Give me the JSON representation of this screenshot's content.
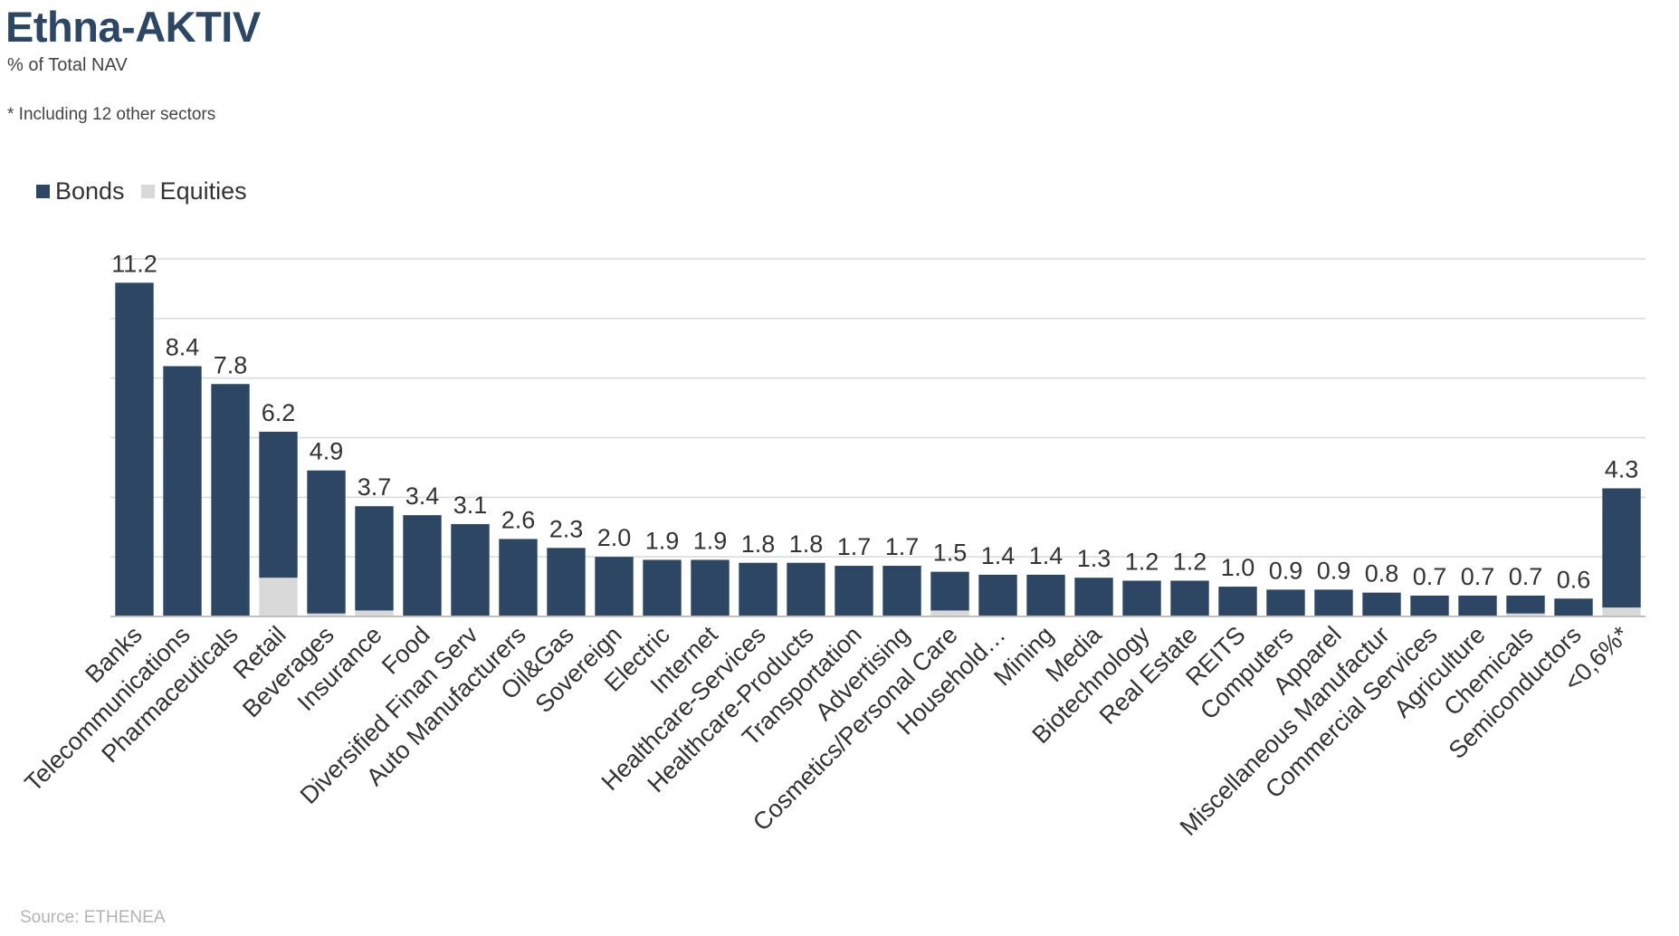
{
  "header": {
    "title": "Ethna-AKTIV",
    "subtitle": "% of Total NAV",
    "note": "* Including 12 other sectors"
  },
  "legend": [
    {
      "name": "Bonds",
      "color": "#2c4663"
    },
    {
      "name": "Equities",
      "color": "#d9d9d9"
    }
  ],
  "source": "Source: ETHENEA",
  "chart_data": {
    "type": "bar",
    "stacked": true,
    "title": "Ethna-AKTIV",
    "ylabel": "",
    "xlabel": "",
    "ylim": [
      0,
      12
    ],
    "grid": true,
    "legend_position": "top-left",
    "categories": [
      "Banks",
      "Telecommunications",
      "Pharmaceuticals",
      "Retail",
      "Beverages",
      "Insurance",
      "Food",
      "Diversified Finan Serv",
      "Auto Manufacturers",
      "Oil&Gas",
      "Sovereign",
      "Electric",
      "Internet",
      "Healthcare-Services",
      "Healthcare-Products",
      "Transportation",
      "Advertising",
      "Cosmetics/Personal Care",
      "Household…",
      "Mining",
      "Media",
      "Biotechnology",
      "Real Estate",
      "REITS",
      "Computers",
      "Apparel",
      "Miscellaneous Manufactur",
      "Commercial Services",
      "Agriculture",
      "Chemicals",
      "Semiconductors",
      "<0,6%*"
    ],
    "series": [
      {
        "name": "Bonds",
        "color": "#2c4663",
        "values": [
          11.2,
          8.4,
          7.8,
          4.9,
          4.8,
          3.5,
          3.4,
          3.1,
          2.6,
          2.3,
          2.0,
          1.9,
          1.9,
          1.8,
          1.8,
          1.7,
          1.7,
          1.3,
          1.4,
          1.4,
          1.3,
          1.2,
          1.2,
          1.0,
          0.9,
          0.9,
          0.8,
          0.7,
          0.7,
          0.6,
          0.6,
          4.0
        ]
      },
      {
        "name": "Equities",
        "color": "#d9d9d9",
        "values": [
          0,
          0,
          0,
          1.3,
          0.1,
          0.2,
          0,
          0,
          0,
          0,
          0,
          0,
          0,
          0,
          0,
          0,
          0,
          0.2,
          0,
          0,
          0,
          0,
          0,
          0,
          0,
          0,
          0,
          0,
          0,
          0.1,
          0,
          0.3
        ]
      }
    ],
    "totals": [
      "11.2",
      "8.4",
      "7.8",
      "6.2",
      "4.9",
      "3.7",
      "3.4",
      "3.1",
      "2.6",
      "2.3",
      "2.0",
      "1.9",
      "1.9",
      "1.8",
      "1.8",
      "1.7",
      "1.7",
      "1.5",
      "1.4",
      "1.4",
      "1.3",
      "1.2",
      "1.2",
      "1.0",
      "0.9",
      "0.9",
      "0.8",
      "0.7",
      "0.7",
      "0.7",
      "0.6",
      "4.3"
    ]
  }
}
